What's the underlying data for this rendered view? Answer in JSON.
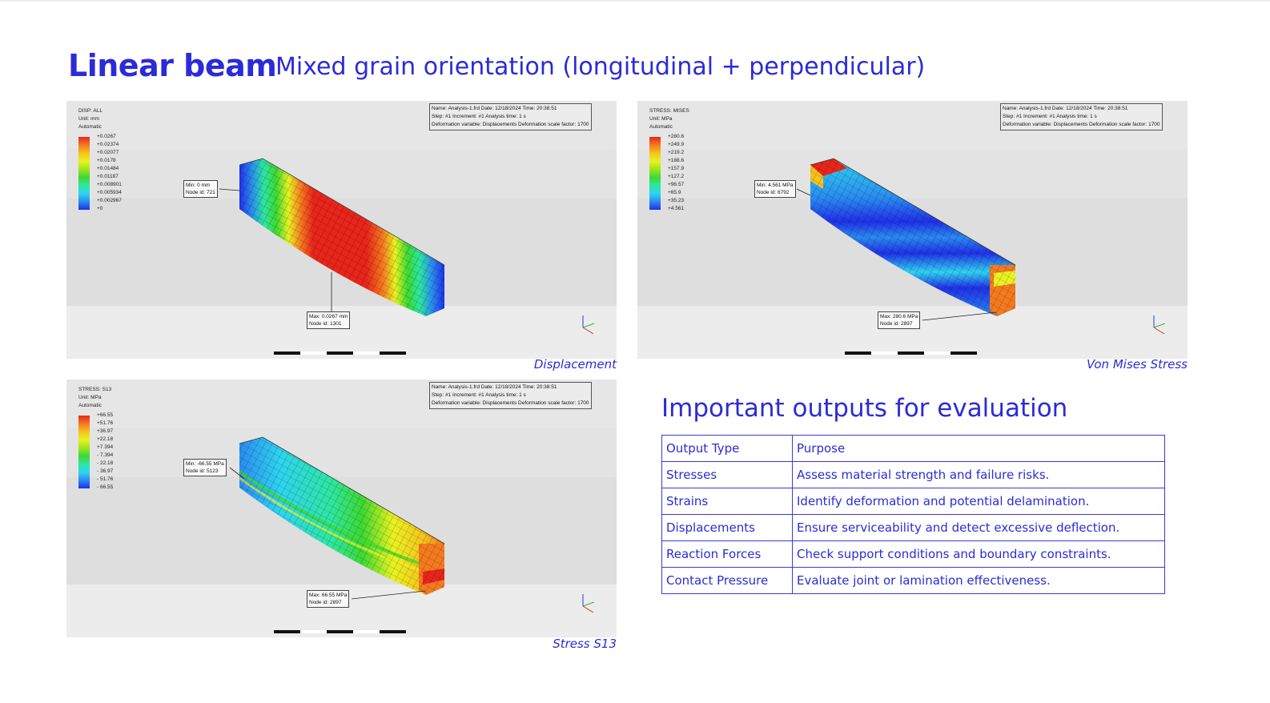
{
  "header": {
    "title": "Linear beam",
    "subtitle": "Mixed grain orientation (longitudinal + perpendicular)"
  },
  "info_box": {
    "line1": "Name: Analysis-1.frd   Date: 12/18/2024   Time: 20:38:51",
    "line2": "Step: #1   Increment: #1   Analysis time: 1 s",
    "line3": "Deformation variable: Displacements   Deformation scale factor: 1700"
  },
  "panels": {
    "displacement": {
      "caption": "Displacement",
      "legend_header": [
        "DISP: ALL",
        "Unit: mm",
        "Automatic"
      ],
      "legend_values": [
        "+0.0267",
        "+0.02374",
        "+0.02077",
        "+0.0178",
        "+0.01484",
        "+0.01187",
        "+0.008901",
        "+0.005934",
        "+0.002967",
        "+0"
      ],
      "min_label": [
        "Min: 0 mm",
        "Node id: 721"
      ],
      "max_label": [
        "Max: 0.0267 mm",
        "Node id: 1301"
      ]
    },
    "von_mises": {
      "caption": "Von Mises Stress",
      "legend_header": [
        "STRESS: MISES",
        "Unit: MPa",
        "Automatic"
      ],
      "legend_values": [
        "+280.6",
        "+249.9",
        "+219.2",
        "+188.6",
        "+157.9",
        "+127.2",
        "+96.57",
        "+65.9",
        "+35.23",
        "+4.561"
      ],
      "min_label": [
        "Min: 4.561 MPa",
        "Node id: 6792"
      ],
      "max_label": [
        "Max: 280.6 MPa",
        "Node id: 2897"
      ]
    },
    "s13": {
      "caption": "Stress S13",
      "legend_header": [
        "STRESS: S13",
        "Unit: MPa",
        "Automatic"
      ],
      "legend_values": [
        "+66.55",
        "+51.76",
        "+36.97",
        "+22.18",
        "+7.394",
        "- 7.394",
        "- 22.18",
        "- 36.97",
        "- 51.76",
        "- 66.55"
      ],
      "min_label": [
        "Min: -66.55 MPa",
        "Node id: 5123"
      ],
      "max_label": [
        "Max: 66.55 MPa",
        "Node id: 2897"
      ]
    }
  },
  "legend_colors": [
    "#e8251b",
    "#f47a1f",
    "#f6c21c",
    "#e8f222",
    "#9ee41e",
    "#3ed833",
    "#2ee6a0",
    "#2fd4f0",
    "#2a8bf0",
    "#2030e8"
  ],
  "outputs": {
    "title": "Important outputs for evaluation",
    "header": [
      "Output Type",
      "Purpose"
    ],
    "rows": [
      [
        "Stresses",
        "Assess material strength and failure risks."
      ],
      [
        "Strains",
        "Identify deformation and potential delamination."
      ],
      [
        "Displacements",
        "Ensure serviceability and detect excessive deflection."
      ],
      [
        "Reaction Forces",
        "Check support conditions and boundary constraints."
      ],
      [
        "Contact Pressure",
        "Evaluate joint or lamination effectiveness."
      ]
    ]
  }
}
